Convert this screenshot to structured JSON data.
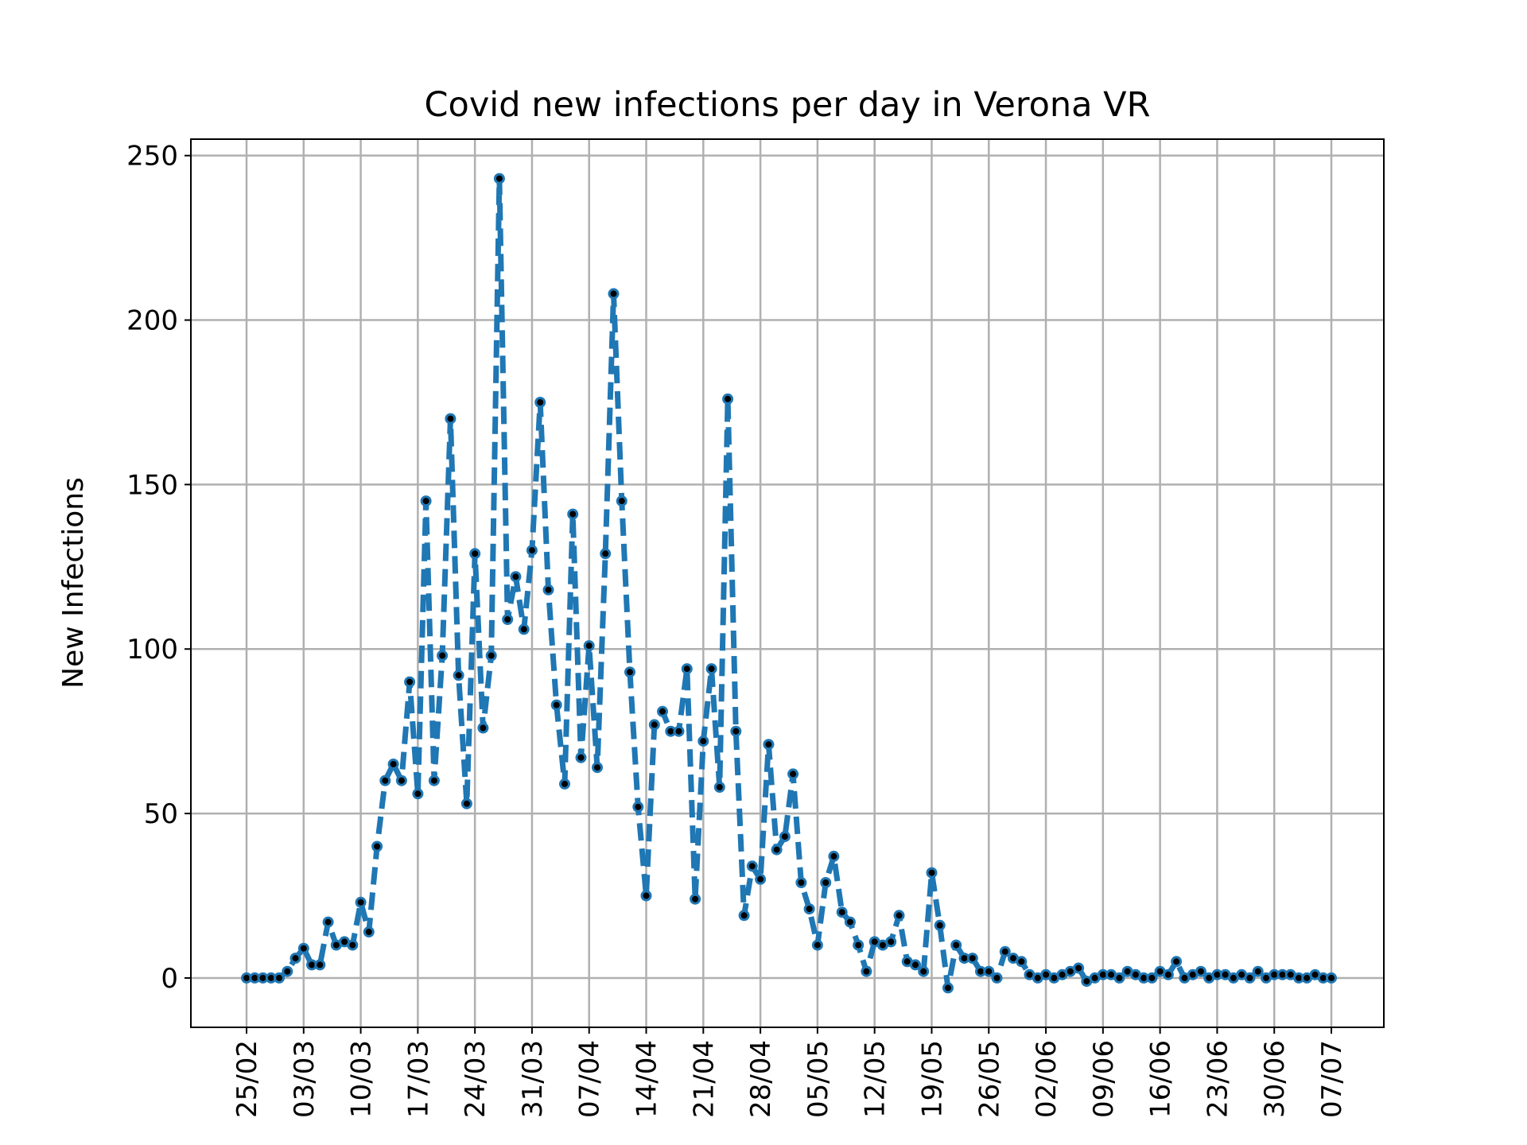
{
  "chart_data": {
    "type": "line",
    "title": "Covid new infections per day in Verona VR",
    "xlabel": "",
    "ylabel": "New Infections",
    "ylim": [
      -15,
      255
    ],
    "yticks": [
      0,
      50,
      100,
      150,
      200,
      250
    ],
    "xticks": [
      "25/02",
      "03/03",
      "10/03",
      "17/03",
      "24/03",
      "31/03",
      "07/04",
      "14/04",
      "21/04",
      "28/04",
      "05/05",
      "12/05",
      "19/05",
      "26/05",
      "02/06",
      "09/06",
      "16/06",
      "23/06",
      "30/06",
      "07/07"
    ],
    "grid": true,
    "line_style": "dashed",
    "marker": "dot",
    "x_start": "25/02",
    "x_end": "07/07",
    "series": [
      {
        "values": [
          0,
          0,
          0,
          0,
          0,
          2,
          6,
          9,
          4,
          4,
          17,
          10,
          11,
          10,
          23,
          14,
          40,
          60,
          65,
          60,
          90,
          56,
          145,
          60,
          98,
          170,
          92,
          53,
          129,
          76,
          98,
          243,
          109,
          122,
          106,
          130,
          175,
          118,
          83,
          59,
          141,
          67,
          101,
          64,
          129,
          208,
          145,
          93,
          52,
          25,
          77,
          81,
          75,
          75,
          94,
          24,
          72,
          94,
          58,
          176,
          75,
          19,
          34,
          30,
          71,
          39,
          43,
          62,
          29,
          21,
          10,
          29,
          37,
          20,
          17,
          10,
          2,
          11,
          10,
          11,
          19,
          5,
          4,
          2,
          32,
          16,
          -3,
          10,
          6,
          6,
          2,
          2,
          0,
          8,
          6,
          5,
          1,
          0,
          1,
          0,
          1,
          2,
          3,
          -1,
          0,
          1,
          1,
          0,
          2,
          1,
          0,
          0,
          2,
          1,
          5,
          0,
          1,
          2,
          0,
          1,
          1,
          0,
          1,
          0,
          2,
          0,
          1,
          1,
          1,
          0,
          0,
          1,
          0,
          0
        ]
      }
    ],
    "colors": {
      "line": "#1f77b4",
      "marker": "#000000",
      "grid": "#b0b0b0"
    }
  }
}
